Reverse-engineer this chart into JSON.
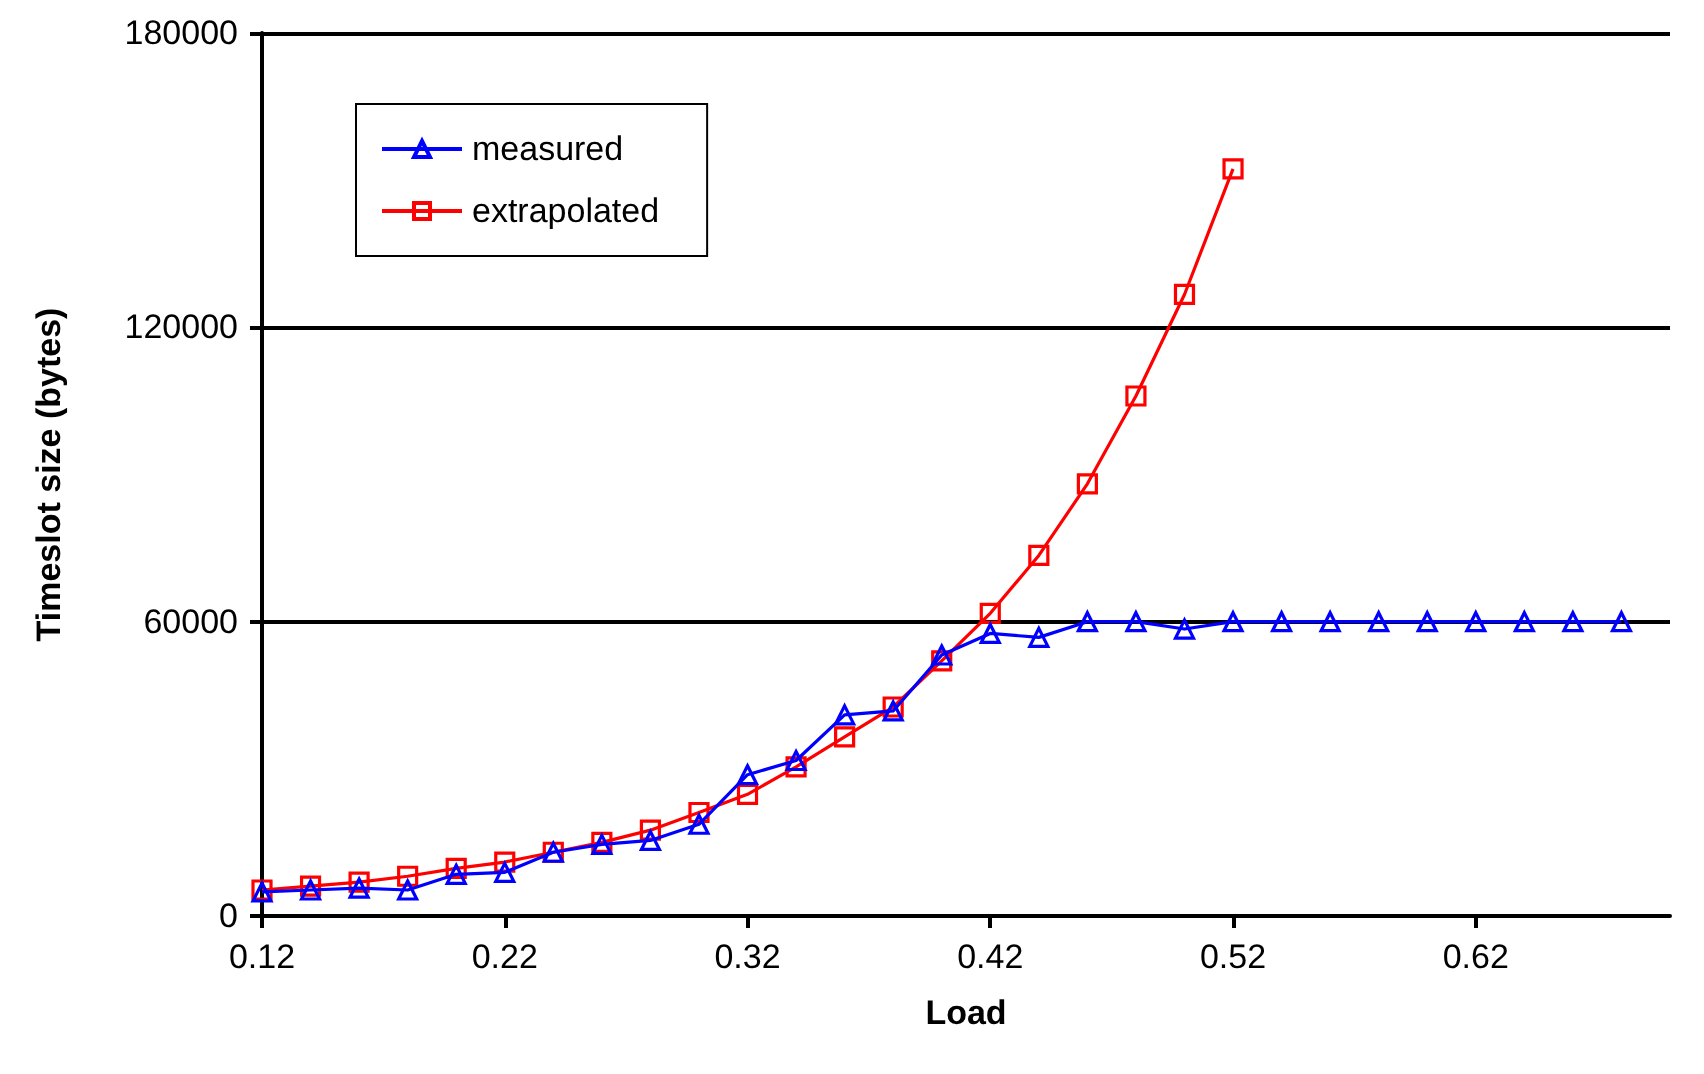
{
  "chart_data": {
    "type": "line",
    "xlabel": "Load",
    "ylabel": "Timeslot size (bytes)",
    "x": [
      0.12,
      0.14,
      0.16,
      0.18,
      0.2,
      0.22,
      0.24,
      0.26,
      0.28,
      0.3,
      0.32,
      0.34,
      0.36,
      0.38,
      0.4,
      0.42,
      0.44,
      0.46,
      0.48,
      0.5,
      0.52,
      0.54,
      0.56,
      0.58,
      0.6,
      0.62,
      0.64,
      0.66,
      0.68
    ],
    "series": [
      {
        "name": "measured",
        "color": "#0000ff",
        "marker": "triangle",
        "values": [
          4900,
          5300,
          5700,
          5300,
          8500,
          8900,
          13000,
          14600,
          15400,
          18700,
          28800,
          31700,
          41000,
          41800,
          53200,
          57600,
          56800,
          60000,
          60000,
          58500,
          60000,
          60000,
          60000,
          60000,
          60000,
          60000,
          60000,
          60000,
          60000
        ]
      },
      {
        "name": "extrapolated",
        "color": "#ff0000",
        "marker": "square",
        "values": [
          5300,
          6100,
          6900,
          8100,
          9700,
          11000,
          13000,
          15000,
          17500,
          21100,
          24800,
          30400,
          36500,
          42600,
          52000,
          61700,
          73500,
          88100,
          106000,
          126700,
          152300,
          null,
          null,
          null,
          null,
          null,
          null,
          null,
          null
        ]
      }
    ],
    "xlim": [
      0.12,
      0.7
    ],
    "xticks": [
      0.12,
      0.22,
      0.32,
      0.42,
      0.52,
      0.62
    ],
    "ylim": [
      0,
      180000
    ],
    "yticks": [
      0,
      60000,
      120000,
      180000
    ],
    "grid": "y",
    "legend": "top left"
  }
}
